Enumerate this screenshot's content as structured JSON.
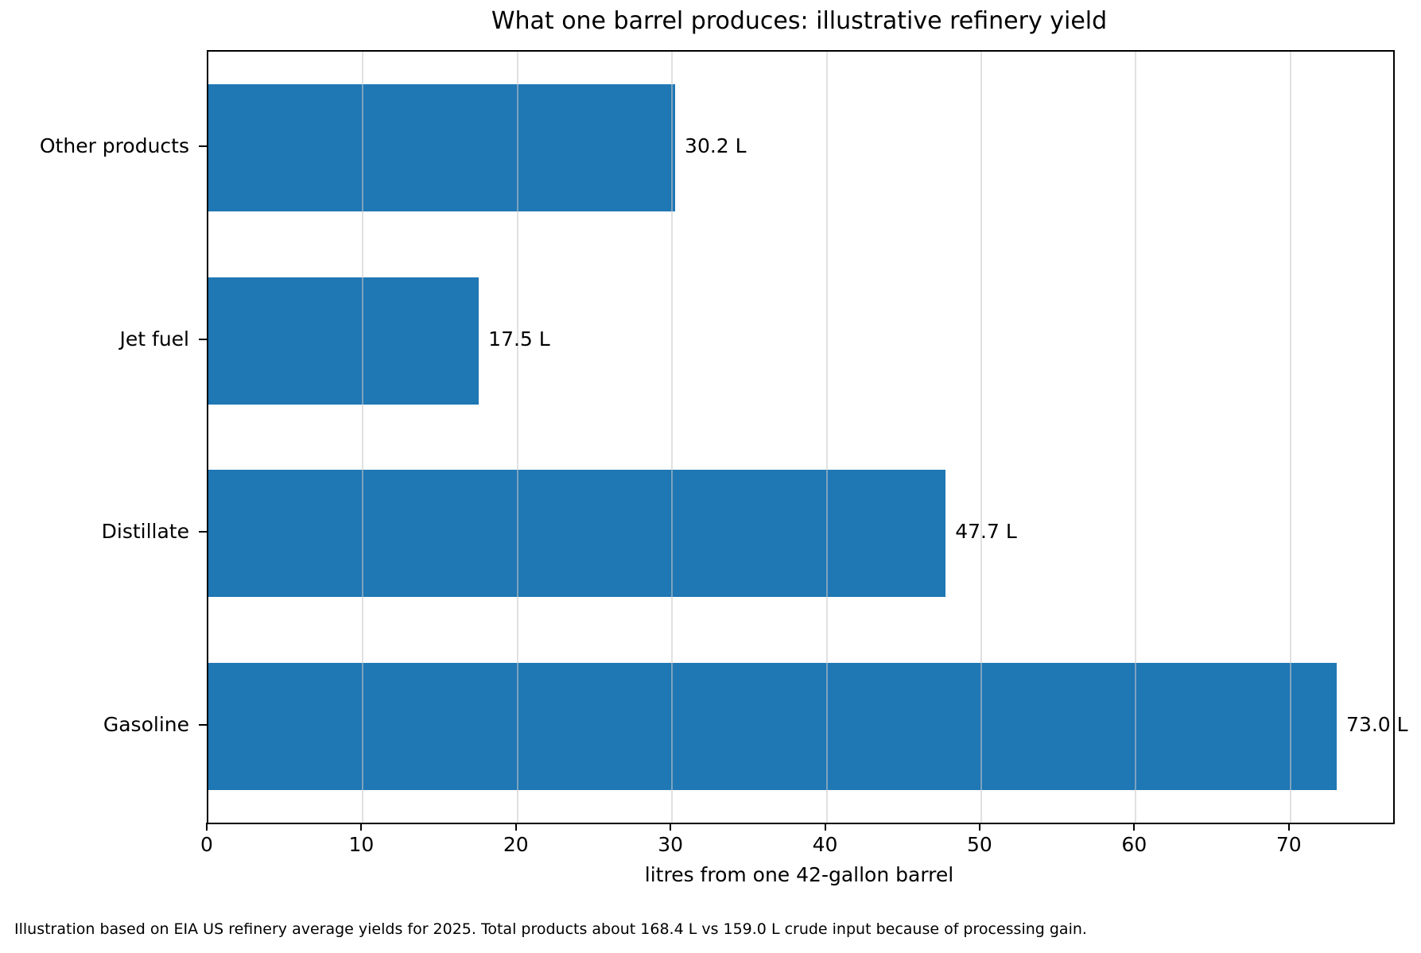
{
  "chart_data": {
    "type": "bar",
    "orientation": "horizontal",
    "title": "What one barrel produces: illustrative refinery yield",
    "xlabel": "litres from one 42-gallon barrel",
    "ylabel": "",
    "categories": [
      "Other products",
      "Jet fuel",
      "Distillate",
      "Gasoline"
    ],
    "values": [
      30.2,
      17.5,
      47.7,
      73.0
    ],
    "bar_labels": [
      "30.2 L",
      "17.5 L",
      "47.7 L",
      "73.0 L"
    ],
    "value_suffix": " L",
    "xlim": [
      0,
      76.65
    ],
    "xticks": [
      0,
      10,
      20,
      30,
      40,
      50,
      60,
      70
    ],
    "grid": "x-axis gridlines, drawn over bars",
    "legend": "none",
    "bar_color": "#1f77b4",
    "gridline_color": "rgba(200,200,200,0.55)",
    "footnote": "Illustration based on EIA US refinery average yields for 2025. Total products about 168.4 L vs 159.0 L crude input because of processing gain."
  }
}
